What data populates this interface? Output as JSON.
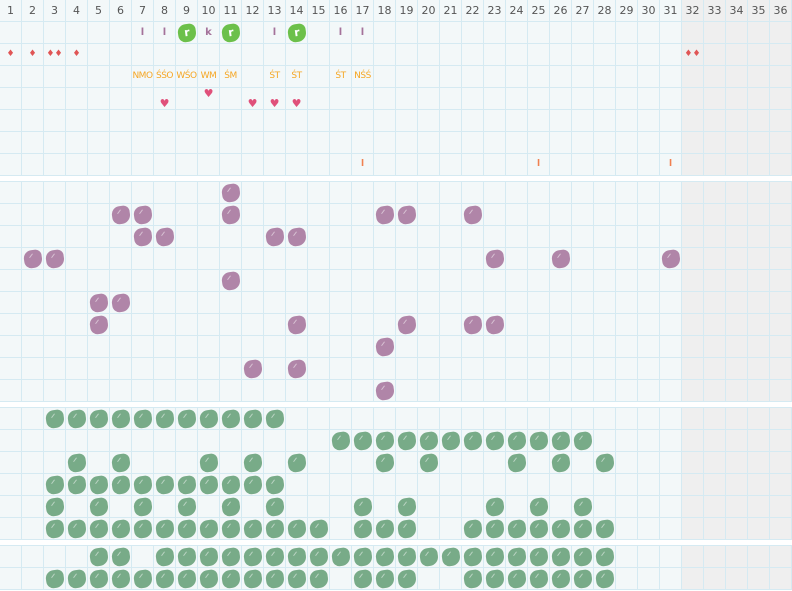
{
  "colors": {
    "grid_bg": "#f3f8f9",
    "grid_line": "#d5eaf2",
    "inactive_bg": "#efefef",
    "purple": "#b085a8",
    "green": "#78ab88",
    "bright_green": "#6cc04a",
    "orange": "#f5a623",
    "drop": "#e05555",
    "heart": "#e0507a"
  },
  "header": {
    "days": [
      "1",
      "2",
      "3",
      "4",
      "5",
      "6",
      "7",
      "8",
      "9",
      "10",
      "11",
      "12",
      "13",
      "14",
      "15",
      "16",
      "17",
      "18",
      "19",
      "20",
      "21",
      "22",
      "23",
      "24",
      "25",
      "26",
      "27",
      "28",
      "29",
      "30",
      "31",
      "32",
      "33",
      "34",
      "35",
      "36"
    ],
    "active_days": 31
  },
  "top_section": {
    "rows": [
      {
        "items": [
          {
            "col": 7,
            "kind": "letter",
            "text": "l"
          },
          {
            "col": 8,
            "kind": "letter",
            "text": "l"
          },
          {
            "col": 9,
            "kind": "badge",
            "text": "r"
          },
          {
            "col": 10,
            "kind": "letter",
            "text": "k"
          },
          {
            "col": 11,
            "kind": "badge",
            "text": "r"
          },
          {
            "col": 13,
            "kind": "letter",
            "text": "l"
          },
          {
            "col": 14,
            "kind": "badge",
            "text": "r"
          },
          {
            "col": 16,
            "kind": "letter",
            "text": "l"
          },
          {
            "col": 17,
            "kind": "letter",
            "text": "l"
          }
        ]
      },
      {
        "items": [
          {
            "col": 1,
            "kind": "drop",
            "text": "♦"
          },
          {
            "col": 2,
            "kind": "drop",
            "text": "♦"
          },
          {
            "col": 3,
            "kind": "drop",
            "text": "♦♦"
          },
          {
            "col": 4,
            "kind": "drop",
            "text": "♦"
          },
          {
            "col": 32,
            "kind": "drop",
            "text": "♦♦"
          }
        ]
      },
      {
        "items": [
          {
            "col": 7,
            "kind": "code",
            "text": "NMO"
          },
          {
            "col": 8,
            "kind": "code",
            "text": "ŚŚO"
          },
          {
            "col": 9,
            "kind": "code",
            "text": "WŚO"
          },
          {
            "col": 10,
            "kind": "code",
            "text": "WM"
          },
          {
            "col": 11,
            "kind": "code",
            "text": "ŚM"
          },
          {
            "col": 13,
            "kind": "code",
            "text": "ŚT"
          },
          {
            "col": 14,
            "kind": "code",
            "text": "ŚT"
          },
          {
            "col": 16,
            "kind": "code",
            "text": "ŚT"
          },
          {
            "col": 17,
            "kind": "code",
            "text": "NŚŚ"
          }
        ]
      },
      {
        "items": [
          {
            "col": 8,
            "kind": "heart-low",
            "text": "♥"
          },
          {
            "col": 10,
            "kind": "heart-high",
            "text": "♥"
          },
          {
            "col": 12,
            "kind": "heart-low",
            "text": "♥"
          },
          {
            "col": 13,
            "kind": "heart-low",
            "text": "♥"
          },
          {
            "col": 14,
            "kind": "heart-low",
            "text": "♥"
          }
        ]
      },
      {
        "items": []
      },
      {
        "items": []
      },
      {
        "items": [
          {
            "col": 17,
            "kind": "tick",
            "text": "l"
          },
          {
            "col": 25,
            "kind": "tick",
            "text": "l"
          },
          {
            "col": 31,
            "kind": "tick",
            "text": "l"
          }
        ]
      }
    ]
  },
  "purple_section": {
    "rows": [
      [
        11
      ],
      [
        6,
        7,
        11,
        18,
        19,
        22
      ],
      [
        7,
        8,
        13,
        14
      ],
      [
        2,
        3,
        23,
        26,
        31
      ],
      [
        11
      ],
      [
        5,
        6
      ],
      [
        5,
        14,
        19,
        22,
        23
      ],
      [
        18
      ],
      [
        12,
        14
      ],
      [
        18
      ]
    ]
  },
  "green_section": {
    "rows": [
      [
        3,
        4,
        5,
        6,
        7,
        8,
        9,
        10,
        11,
        12,
        13
      ],
      [
        16,
        17,
        18,
        19,
        20,
        21,
        22,
        23,
        24,
        25,
        26,
        27
      ],
      [
        4,
        6,
        10,
        12,
        14,
        18,
        20,
        24,
        26,
        28
      ],
      [
        3,
        4,
        5,
        6,
        7,
        8,
        9,
        10,
        11,
        12,
        13
      ],
      [
        3,
        5,
        7,
        9,
        11,
        13,
        17,
        19,
        23,
        25,
        27
      ],
      [
        3,
        4,
        5,
        6,
        7,
        8,
        9,
        10,
        11,
        12,
        13,
        14,
        15,
        17,
        18,
        19,
        22,
        23,
        24,
        25,
        26,
        27,
        28
      ]
    ]
  },
  "bottom_section": {
    "rows": [
      [
        5,
        6,
        8,
        9,
        10,
        11,
        12,
        13,
        14,
        15,
        16,
        17,
        18,
        19,
        20,
        21,
        22,
        23,
        24,
        25,
        26,
        27,
        28
      ],
      [
        3,
        4,
        5,
        6,
        7,
        8,
        9,
        10,
        11,
        12,
        13,
        14,
        15,
        17,
        18,
        19,
        22,
        23,
        24,
        25,
        26,
        27,
        28
      ]
    ]
  }
}
